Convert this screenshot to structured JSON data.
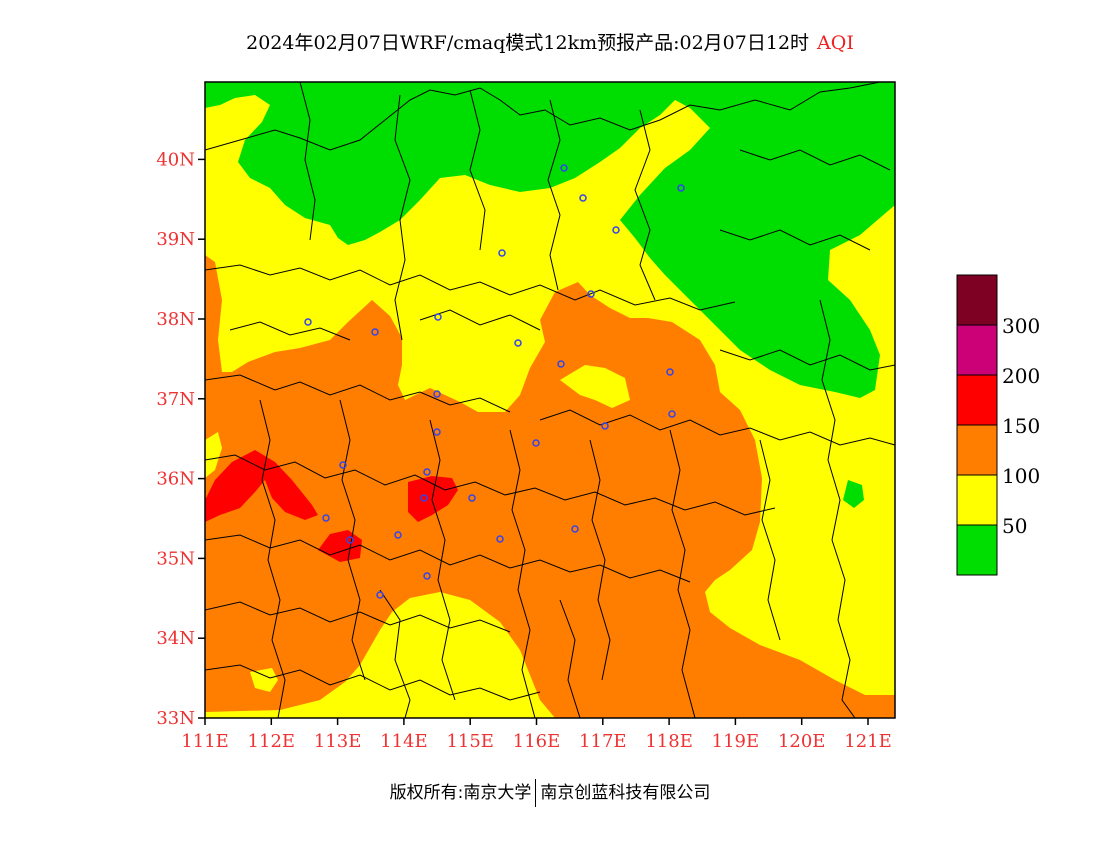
{
  "title": {
    "main": "2024年02月07日WRF/cmaq模式12km预报产品:02月07日12时",
    "variable": "AQI"
  },
  "axes": {
    "lat_labels": [
      "33N",
      "34N",
      "35N",
      "36N",
      "37N",
      "38N",
      "39N",
      "40N"
    ],
    "lon_labels": [
      "111E",
      "112E",
      "113E",
      "114E",
      "115E",
      "116E",
      "117E",
      "118E",
      "119E",
      "120E",
      "121E"
    ]
  },
  "legend": {
    "bins": [
      {
        "color": "#00dd00",
        "range": "0-50"
      },
      {
        "color": "#ffff00",
        "range": "50-100"
      },
      {
        "color": "#ff7e00",
        "range": "100-150"
      },
      {
        "color": "#ff0000",
        "range": "150-200"
      },
      {
        "color": "#cc0077",
        "range": "200-300"
      },
      {
        "color": "#7e0023",
        "range": "300+"
      }
    ],
    "labels": [
      "50",
      "100",
      "150",
      "200",
      "300"
    ]
  },
  "footer": {
    "left": "版权所有:南京大学",
    "right": "南京创蓝科技有限公司"
  }
}
